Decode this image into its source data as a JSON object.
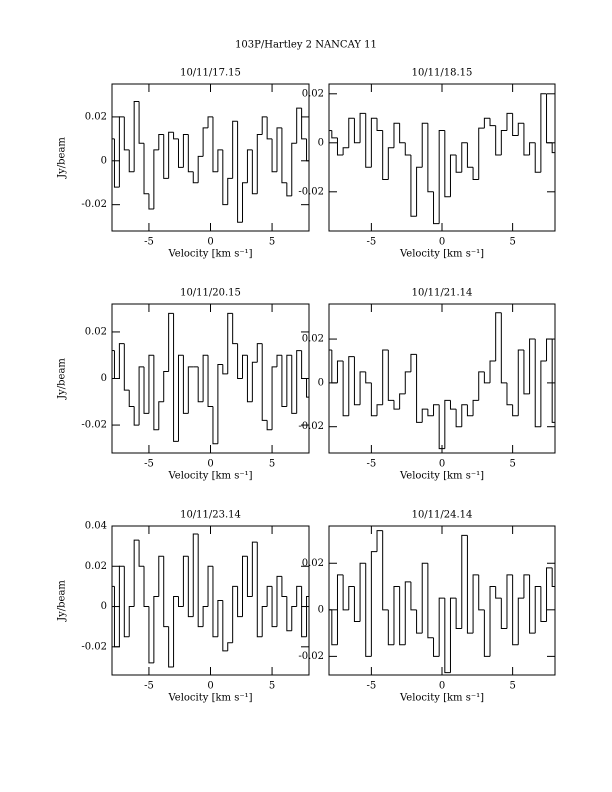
{
  "title": "103P/Hartley 2   NANCAY     11",
  "chart_data": [
    {
      "type": "line",
      "step": true,
      "title": "10/11/17.15",
      "xlabel": "Velocity [km s⁻¹]",
      "ylabel": "Jy/beam",
      "color": "#000000",
      "xlim": [
        -8,
        8
      ],
      "xticks": [
        -5,
        0,
        5
      ],
      "ylim": [
        -0.032,
        0.035
      ],
      "yticks": [
        -0.02,
        0,
        0.02
      ],
      "x": [
        -8,
        -7.6,
        -7.2,
        -6.8,
        -6.4,
        -6,
        -5.6,
        -5.2,
        -4.8,
        -4.4,
        -4,
        -3.6,
        -3.2,
        -2.8,
        -2.4,
        -2,
        -1.6,
        -1.2,
        -0.8,
        -0.4,
        0,
        0.4,
        0.8,
        1.2,
        1.6,
        2,
        2.4,
        2.8,
        3.2,
        3.6,
        4,
        4.4,
        4.8,
        5.2,
        5.6,
        6,
        6.4,
        6.8,
        7.2,
        7.6,
        8
      ],
      "values": [
        0.01,
        -0.012,
        0.02,
        0.005,
        -0.005,
        0.027,
        0.008,
        -0.015,
        -0.022,
        0.005,
        0.012,
        -0.008,
        0.013,
        0.01,
        -0.003,
        0.012,
        -0.005,
        -0.01,
        0.002,
        0.015,
        0.02,
        -0.005,
        0.005,
        -0.02,
        -0.008,
        0.018,
        -0.028,
        -0.01,
        0.005,
        -0.015,
        0.012,
        0.02,
        0.01,
        -0.005,
        0.015,
        -0.01,
        -0.016,
        0.008,
        0.024,
        0.01,
        0.0
      ]
    },
    {
      "type": "line",
      "step": true,
      "title": "10/11/18.15",
      "xlabel": "Velocity [km s⁻¹]",
      "color": "#000000",
      "xlim": [
        -8,
        8
      ],
      "xticks": [
        -5,
        0,
        5
      ],
      "ylim": [
        -0.036,
        0.024
      ],
      "yticks": [
        -0.02,
        0,
        0.02
      ],
      "x": [
        -8,
        -7.6,
        -7.2,
        -6.8,
        -6.4,
        -6,
        -5.6,
        -5.2,
        -4.8,
        -4.4,
        -4,
        -3.6,
        -3.2,
        -2.8,
        -2.4,
        -2,
        -1.6,
        -1.2,
        -0.8,
        -0.4,
        0,
        0.4,
        0.8,
        1.2,
        1.6,
        2,
        2.4,
        2.8,
        3.2,
        3.6,
        4,
        4.4,
        4.8,
        5.2,
        5.6,
        6,
        6.4,
        6.8,
        7.2,
        7.6,
        8
      ],
      "values": [
        0.005,
        0.002,
        -0.005,
        -0.002,
        0.01,
        0.0,
        0.012,
        -0.01,
        0.01,
        0.005,
        -0.015,
        -0.002,
        0.008,
        0.0,
        -0.005,
        -0.03,
        -0.01,
        0.008,
        -0.02,
        -0.033,
        0.005,
        -0.022,
        -0.005,
        -0.012,
        0.0,
        -0.01,
        -0.015,
        0.006,
        0.01,
        0.007,
        -0.005,
        0.005,
        0.012,
        0.003,
        0.008,
        -0.005,
        0.0,
        -0.012,
        0.02,
        0.0,
        -0.004
      ]
    },
    {
      "type": "line",
      "step": true,
      "title": "10/11/20.15",
      "xlabel": "Velocity [km s⁻¹]",
      "ylabel": "Jy/beam",
      "color": "#000000",
      "xlim": [
        -8,
        8
      ],
      "xticks": [
        -5,
        0,
        5
      ],
      "ylim": [
        -0.032,
        0.032
      ],
      "yticks": [
        -0.02,
        0,
        0.02
      ],
      "x": [
        -8,
        -7.6,
        -7.2,
        -6.8,
        -6.4,
        -6,
        -5.6,
        -5.2,
        -4.8,
        -4.4,
        -4,
        -3.6,
        -3.2,
        -2.8,
        -2.4,
        -2,
        -1.6,
        -1.2,
        -0.8,
        -0.4,
        0,
        0.4,
        0.8,
        1.2,
        1.6,
        2,
        2.4,
        2.8,
        3.2,
        3.6,
        4,
        4.4,
        4.8,
        5.2,
        5.6,
        6,
        6.4,
        6.8,
        7.2,
        7.6,
        8
      ],
      "values": [
        0.012,
        0.0,
        0.015,
        -0.005,
        -0.012,
        -0.02,
        0.005,
        -0.015,
        0.01,
        -0.022,
        -0.01,
        0.003,
        0.028,
        -0.027,
        0.01,
        -0.015,
        0.005,
        0.005,
        -0.01,
        0.01,
        -0.012,
        -0.028,
        0.006,
        0.002,
        0.028,
        0.015,
        0.0,
        0.01,
        -0.01,
        0.007,
        0.015,
        -0.018,
        -0.022,
        0.005,
        0.01,
        -0.012,
        0.01,
        -0.015,
        0.012,
        0.0,
        -0.008
      ]
    },
    {
      "type": "line",
      "step": true,
      "title": "10/11/21.14",
      "xlabel": "Velocity [km s⁻¹]",
      "color": "#000000",
      "xlim": [
        -8,
        8
      ],
      "xticks": [
        -5,
        0,
        5
      ],
      "ylim": [
        -0.032,
        0.036
      ],
      "yticks": [
        -0.02,
        0,
        0.02
      ],
      "x": [
        -8,
        -7.6,
        -7.2,
        -6.8,
        -6.4,
        -6,
        -5.6,
        -5.2,
        -4.8,
        -4.4,
        -4,
        -3.6,
        -3.2,
        -2.8,
        -2.4,
        -2,
        -1.6,
        -1.2,
        -0.8,
        -0.4,
        0,
        0.4,
        0.8,
        1.2,
        1.6,
        2,
        2.4,
        2.8,
        3.2,
        3.6,
        4,
        4.4,
        4.8,
        5.2,
        5.6,
        6,
        6.4,
        6.8,
        7.2,
        7.6,
        8
      ],
      "values": [
        0.015,
        0.0,
        0.01,
        -0.015,
        0.012,
        -0.01,
        0.005,
        0.0,
        -0.015,
        -0.01,
        0.015,
        -0.008,
        -0.012,
        -0.005,
        0.005,
        0.013,
        -0.018,
        -0.012,
        -0.015,
        -0.01,
        -0.03,
        -0.008,
        -0.012,
        -0.02,
        -0.01,
        -0.015,
        -0.008,
        0.005,
        0.0,
        0.01,
        0.032,
        0.0,
        -0.01,
        -0.015,
        0.015,
        -0.005,
        0.02,
        -0.02,
        0.01,
        0.02,
        -0.018
      ]
    },
    {
      "type": "line",
      "step": true,
      "title": "10/11/23.14",
      "xlabel": "Velocity [km s⁻¹]",
      "ylabel": "Jy/beam",
      "color": "#000000",
      "xlim": [
        -8,
        8
      ],
      "xticks": [
        -5,
        0,
        5
      ],
      "ylim": [
        -0.034,
        0.04
      ],
      "yticks": [
        -0.02,
        0,
        0.02,
        0.04
      ],
      "x": [
        -8,
        -7.6,
        -7.2,
        -6.8,
        -6.4,
        -6,
        -5.6,
        -5.2,
        -4.8,
        -4.4,
        -4,
        -3.6,
        -3.2,
        -2.8,
        -2.4,
        -2,
        -1.6,
        -1.2,
        -0.8,
        -0.4,
        0,
        0.4,
        0.8,
        1.2,
        1.6,
        2,
        2.4,
        2.8,
        3.2,
        3.6,
        4,
        4.4,
        4.8,
        5.2,
        5.6,
        6,
        6.4,
        6.8,
        7.2,
        7.6,
        8
      ],
      "values": [
        0.01,
        -0.02,
        0.02,
        -0.015,
        0.0,
        0.033,
        0.02,
        0.0,
        -0.028,
        0.005,
        0.025,
        -0.01,
        -0.03,
        0.005,
        0.0,
        0.025,
        -0.005,
        0.036,
        -0.01,
        0.0,
        0.02,
        -0.015,
        0.003,
        -0.022,
        -0.018,
        0.01,
        -0.005,
        0.025,
        0.005,
        0.032,
        -0.015,
        0.0,
        0.01,
        -0.01,
        0.015,
        0.005,
        -0.012,
        0.0,
        0.01,
        -0.015,
        0.005
      ]
    },
    {
      "type": "line",
      "step": true,
      "title": "10/11/24.14",
      "xlabel": "Velocity [km s⁻¹]",
      "color": "#000000",
      "xlim": [
        -8,
        8
      ],
      "xticks": [
        -5,
        0,
        5
      ],
      "ylim": [
        -0.028,
        0.036
      ],
      "yticks": [
        -0.02,
        0,
        0.02
      ],
      "x": [
        -8,
        -7.6,
        -7.2,
        -6.8,
        -6.4,
        -6,
        -5.6,
        -5.2,
        -4.8,
        -4.4,
        -4,
        -3.6,
        -3.2,
        -2.8,
        -2.4,
        -2,
        -1.6,
        -1.2,
        -0.8,
        -0.4,
        0,
        0.4,
        0.8,
        1.2,
        1.6,
        2,
        2.4,
        2.8,
        3.2,
        3.6,
        4,
        4.4,
        4.8,
        5.2,
        5.6,
        6,
        6.4,
        6.8,
        7.2,
        7.6,
        8
      ],
      "values": [
        0.0,
        -0.015,
        0.015,
        0.0,
        0.01,
        -0.005,
        0.02,
        -0.02,
        0.025,
        0.034,
        0.0,
        -0.015,
        0.01,
        -0.015,
        0.012,
        0.0,
        -0.01,
        0.02,
        -0.012,
        -0.02,
        0.005,
        -0.027,
        0.005,
        -0.008,
        0.032,
        -0.01,
        0.015,
        0.0,
        -0.02,
        0.01,
        0.005,
        -0.008,
        0.015,
        -0.015,
        0.005,
        0.015,
        -0.01,
        0.01,
        -0.005,
        0.018,
        0.01
      ]
    }
  ]
}
